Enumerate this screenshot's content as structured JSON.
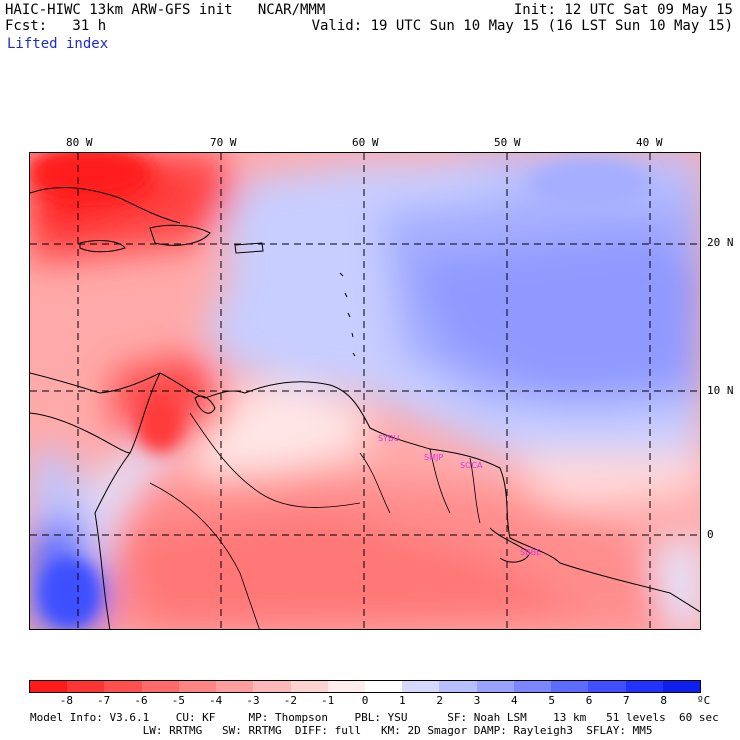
{
  "header": {
    "line1_left": "HAIC-HIWC 13km ARW-GFS init   NCAR/MMM",
    "line2_left": "Fcst:   31 h",
    "line3_left": "Lifted index",
    "line1_right": "Init: 12 UTC Sat 09 May 15",
    "line2_right": "Valid: 19 UTC Sun 10 May 15 (16 LST Sun 10 May 15)"
  },
  "map": {
    "field": "Lifted index",
    "lon_labels": [
      "80 W",
      "70 W",
      "60 W",
      "50 W",
      "40 W"
    ],
    "lat_labels": [
      "20 N",
      "10 N",
      "0"
    ],
    "stations": [
      "SYBU",
      "SMJP",
      "SOCA",
      "SBBE"
    ],
    "colors": {
      "unstable": "#ff1f1f",
      "neutral": "#ffffff",
      "stable": "#2a3cff",
      "station": "#d93ad9"
    }
  },
  "colorbar": {
    "ticks": [
      "-8",
      "-7",
      "-6",
      "-5",
      "-4",
      "-3",
      "-2",
      "-1",
      "0",
      "1",
      "2",
      "3",
      "4",
      "5",
      "6",
      "7",
      "8"
    ],
    "unit": "ºC",
    "colors": [
      "#ff1a1a",
      "#ff3535",
      "#ff4f4f",
      "#ff6a6a",
      "#ff8484",
      "#ff9e9e",
      "#ffb8b8",
      "#ffd2d2",
      "#ffecec",
      "#ffffff",
      "#d5d9ff",
      "#b8bfff",
      "#9aa3ff",
      "#7c87ff",
      "#5e6bff",
      "#404fff",
      "#2233ff",
      "#0d20ee"
    ]
  },
  "model_info": {
    "line1": "Model Info: V3.6.1    CU: KF     MP: Thompson    PBL: YSU      SF: Noah LSM    13 km   51 levels  60 sec",
    "line2": "                 LW: RRTMG   SW: RRTMG  DIFF: full   KM: 2D Smagor DAMP: Rayleigh3  SFLAY: MM5"
  }
}
